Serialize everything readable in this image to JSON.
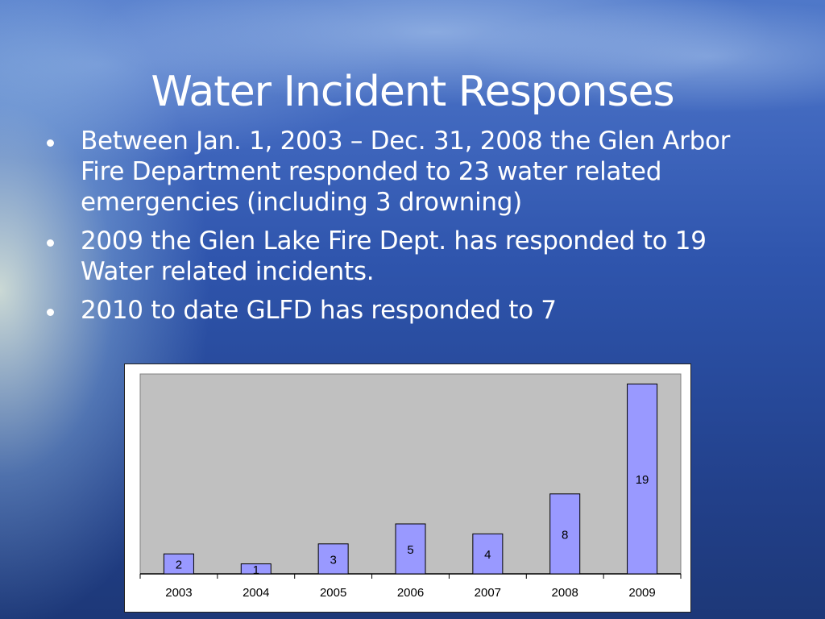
{
  "slide": {
    "title": "Water Incident Responses",
    "bullets": [
      "Between Jan. 1, 2003 – Dec. 31, 2008 the Glen Arbor Fire Department responded to 23 water related emergencies (including 3 drowning)",
      "2009 the Glen Lake Fire Dept. has responded to 19 Water related incidents.",
      "2010 to date GLFD has responded to 7"
    ]
  },
  "chart_data": {
    "type": "bar",
    "title": "",
    "xlabel": "",
    "ylabel": "",
    "categories": [
      "2003",
      "2004",
      "2005",
      "2006",
      "2007",
      "2008",
      "2009"
    ],
    "values": [
      2,
      1,
      3,
      5,
      4,
      8,
      19
    ],
    "ylim": [
      0,
      20
    ],
    "grid": false,
    "legend": "none",
    "data_labels": true,
    "colors": {
      "bar_fill": "#9999ff",
      "bar_stroke": "#000000",
      "plot_background": "#c0c0c0",
      "frame_background": "#ffffff"
    }
  }
}
